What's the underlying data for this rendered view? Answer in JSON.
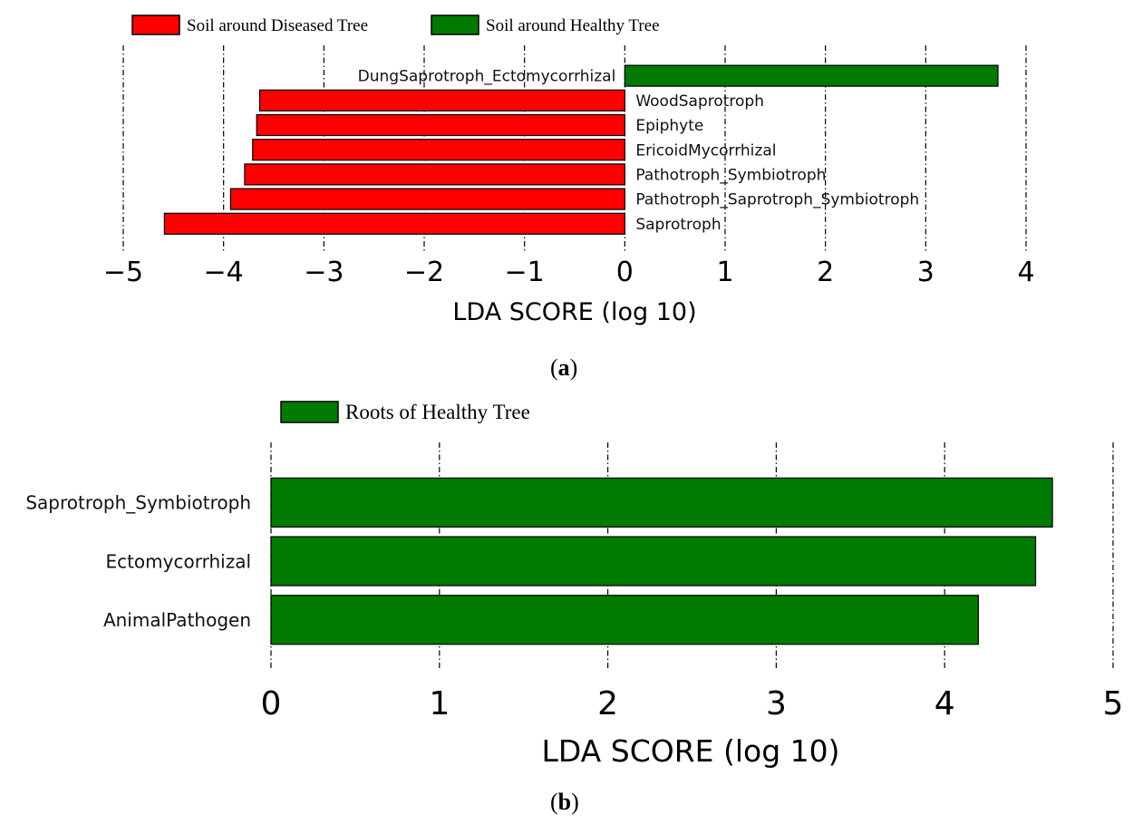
{
  "colors": {
    "diseased_soil": "#ff0000",
    "healthy_soil": "#007a00",
    "healthy_roots": "#007a00"
  },
  "chart_data": [
    {
      "type": "bar",
      "orientation": "horizontal",
      "panel_label": "a",
      "xlabel": "LDA SCORE (log 10)",
      "xlim": [
        -5,
        4
      ],
      "xticks": [
        -5,
        -4,
        -3,
        -2,
        -1,
        0,
        1,
        2,
        3,
        4
      ],
      "xtick_labels": [
        "−5",
        "−4",
        "−3",
        "−2",
        "−1",
        "0",
        "1",
        "2",
        "3",
        "4"
      ],
      "grid": "vertical dash-dot at ticks",
      "legend_position": "top-left",
      "legend": [
        {
          "label": "Soil around Diseased Tree",
          "color": "#ff0000"
        },
        {
          "label": "Soil around Healthy Tree",
          "color": "#007a00"
        }
      ],
      "categories": [
        "DungSaprotroph_Ectomycorrhizal",
        "WoodSaprotroph",
        "Epiphyte",
        "EricoidMycorrhizal",
        "Pathotroph_Symbiotroph",
        "Pathotroph_Saprotroph_Symbiotroph",
        "Saprotroph"
      ],
      "values": [
        3.72,
        -3.64,
        -3.67,
        -3.71,
        -3.79,
        -3.93,
        -4.59
      ],
      "groups": [
        "Soil around Healthy Tree",
        "Soil around Diseased Tree",
        "Soil around Diseased Tree",
        "Soil around Diseased Tree",
        "Soil around Diseased Tree",
        "Soil around Diseased Tree",
        "Soil around Diseased Tree"
      ]
    },
    {
      "type": "bar",
      "orientation": "horizontal",
      "panel_label": "b",
      "xlabel": "LDA SCORE (log 10)",
      "xlim": [
        0,
        5
      ],
      "xticks": [
        0,
        1,
        2,
        3,
        4,
        5
      ],
      "xtick_labels": [
        "0",
        "1",
        "2",
        "3",
        "4",
        "5"
      ],
      "grid": "vertical dash-dot at ticks",
      "legend_position": "top-left",
      "legend": [
        {
          "label": "Roots of Healthy Tree",
          "color": "#007a00"
        }
      ],
      "categories": [
        "Saprotroph_Symbiotroph",
        "Ectomycorrhizal",
        "AnimalPathogen"
      ],
      "values": [
        4.64,
        4.54,
        4.2
      ],
      "groups": [
        "Roots of Healthy Tree",
        "Roots of Healthy Tree",
        "Roots of Healthy Tree"
      ]
    }
  ]
}
